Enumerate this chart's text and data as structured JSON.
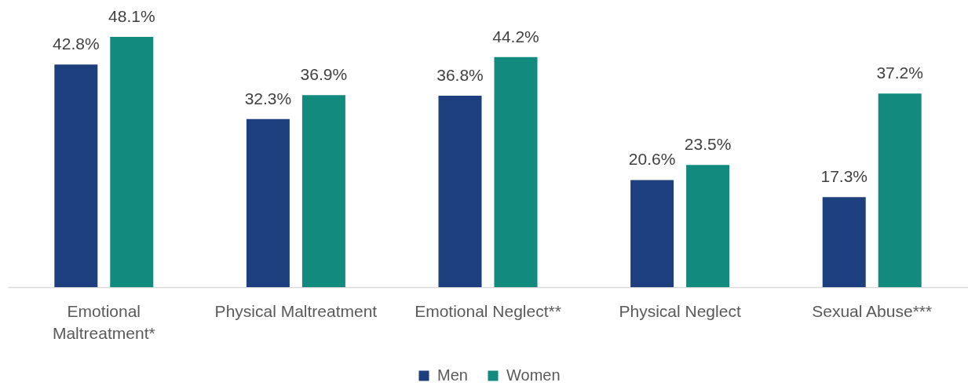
{
  "chart_data": {
    "type": "bar",
    "categories": [
      "Emotional Maltreatment*",
      "Physical Maltreatment",
      "Emotional Neglect**",
      "Physical Neglect",
      "Sexual Abuse***"
    ],
    "series": [
      {
        "name": "Men",
        "color": "#1e3f7d",
        "values": [
          42.8,
          32.3,
          36.8,
          20.6,
          17.3
        ],
        "value_labels": [
          "42.8%",
          "32.3%",
          "36.8%",
          "20.6%",
          "17.3%"
        ]
      },
      {
        "name": "Women",
        "color": "#138a7e",
        "values": [
          48.1,
          36.9,
          44.2,
          23.5,
          37.2
        ],
        "value_labels": [
          "48.1%",
          "36.9%",
          "44.2%",
          "23.5%",
          "37.2%"
        ]
      }
    ],
    "legend": "bottom"
  }
}
